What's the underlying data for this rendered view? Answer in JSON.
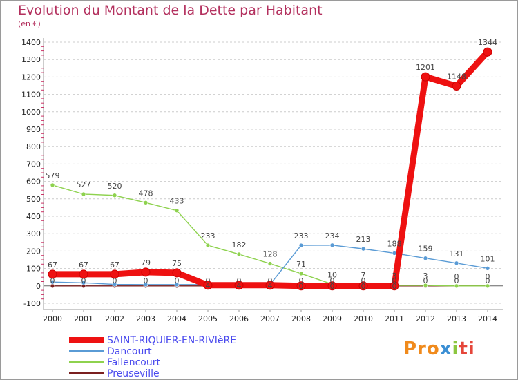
{
  "title": "Evolution du Montant de la Dette par Habitant",
  "subtitle": "(en €)",
  "logo": {
    "p1": "Pro",
    "p2": "x",
    "p3": "i",
    "p4": "ti"
  },
  "colors": {
    "grid": "#cccccc",
    "axis": "#999999",
    "title": "#b3305e",
    "zero_line": "#666666"
  },
  "chart_data": {
    "type": "line",
    "title": "Evolution du Montant de la Dette par Habitant",
    "subtitle": "(en €)",
    "x": [
      "2000",
      "2001",
      "2002",
      "2003",
      "2004",
      "2005",
      "2006",
      "2007",
      "2008",
      "2009",
      "2010",
      "2011",
      "2012",
      "2013",
      "2014"
    ],
    "ylim": [
      -100,
      1400
    ],
    "yticks": [
      -100,
      0,
      100,
      200,
      300,
      400,
      500,
      600,
      700,
      800,
      900,
      1000,
      1100,
      1200,
      1300,
      1400
    ],
    "grid": "horizontal dashed",
    "legend": "bottom-left",
    "series": [
      {
        "name": "SAINT-RIQUIER-EN-RIVIèRE",
        "color": "#ee1111",
        "width": 9,
        "legend_color": "#4a4aee",
        "values": [
          67,
          67,
          67,
          79,
          75,
          4,
          4,
          4,
          0,
          0,
          0,
          0,
          1201,
          1148,
          1344
        ],
        "labels": [
          "67",
          "67",
          "67",
          "79",
          "75",
          "4",
          "4",
          "4",
          "0",
          "0",
          "0",
          "0",
          "1201",
          "1148",
          "1344"
        ]
      },
      {
        "name": "Dancourt",
        "color": "#5a9bd5",
        "width": 1.4,
        "legend_color": "#4a4aee",
        "values": [
          22,
          18,
          9,
          8,
          8,
          8,
          8,
          8,
          233,
          234,
          213,
          188,
          159,
          131,
          101
        ],
        "labels": [
          "",
          "",
          "",
          "",
          "",
          "",
          "",
          "",
          "233",
          "234",
          "213",
          "188",
          "159",
          "131",
          "101"
        ]
      },
      {
        "name": "Fallencourt",
        "color": "#8ed24e",
        "width": 1.4,
        "legend_color": "#4a4aee",
        "values": [
          579,
          527,
          520,
          478,
          433,
          233,
          182,
          128,
          71,
          10,
          7,
          3,
          3,
          0,
          0
        ],
        "labels": [
          "579",
          "527",
          "520",
          "478",
          "433",
          "233",
          "182",
          "128",
          "71",
          "10",
          "7",
          "3",
          "3",
          "0",
          "0"
        ]
      },
      {
        "name": "Preuseville",
        "color": "#7a2020",
        "width": 1.4,
        "legend_color": "#4a4aee",
        "values": [
          0,
          0,
          0,
          0,
          0,
          0,
          0,
          0,
          0,
          0,
          0,
          0,
          0,
          0,
          0
        ],
        "labels": [
          "0",
          "0",
          "0",
          "0",
          "0",
          "0",
          "0",
          "0",
          "0",
          "0",
          "0",
          "0",
          "0",
          "0",
          "0"
        ]
      }
    ]
  }
}
